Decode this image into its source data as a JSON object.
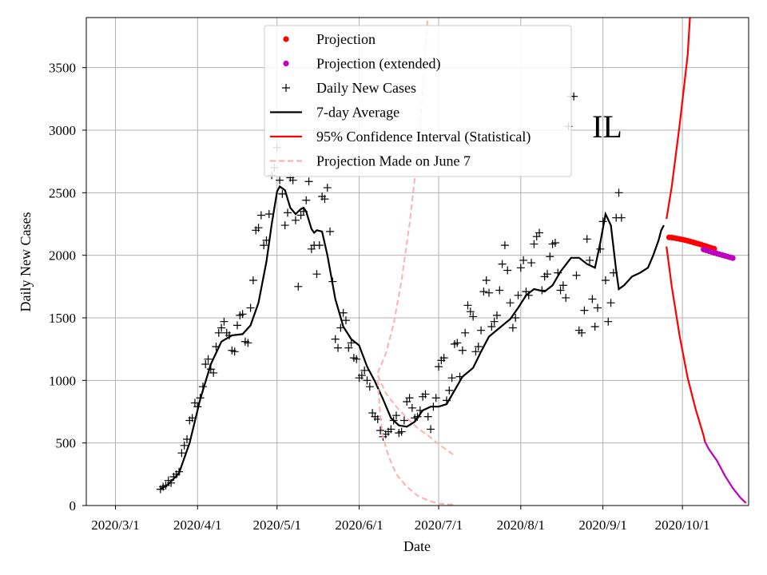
{
  "chart_data": {
    "type": "line",
    "state_label": "IL",
    "xlabel": "Date",
    "ylabel": "Daily New Cases",
    "xlim_days": [
      -11,
      239
    ],
    "ylim": [
      0,
      3900
    ],
    "x_ticks": [
      {
        "day": 0,
        "label": "2020/3/1"
      },
      {
        "day": 31,
        "label": "2020/4/1"
      },
      {
        "day": 61,
        "label": "2020/5/1"
      },
      {
        "day": 92,
        "label": "2020/6/1"
      },
      {
        "day": 122,
        "label": "2020/7/1"
      },
      {
        "day": 153,
        "label": "2020/8/1"
      },
      {
        "day": 184,
        "label": "2020/9/1"
      },
      {
        "day": 214,
        "label": "2020/10/1"
      }
    ],
    "y_ticks": [
      0,
      500,
      1000,
      1500,
      2000,
      2500,
      3000,
      3500
    ],
    "grid": true,
    "legend_position": "top-center",
    "legend": [
      {
        "label": "Projection",
        "color": "#ff0000",
        "style": "dot"
      },
      {
        "label": "Projection (extended)",
        "color": "#bf00bf",
        "style": "dot"
      },
      {
        "label": "Daily New Cases",
        "color": "#000000",
        "style": "plus"
      },
      {
        "label": "7-day Average",
        "color": "#000000",
        "style": "line"
      },
      {
        "label": "95% Confidence Interval (Statistical)",
        "color": "#ff0000",
        "style": "line"
      },
      {
        "label": "Projection Made on June 7",
        "color": "#ffb0b0",
        "style": "dashed"
      }
    ],
    "series": [
      {
        "name": "Daily New Cases",
        "color": "#000000",
        "x_start_day": 17,
        "values": [
          130,
          150,
          160,
          200,
          180,
          230,
          250,
          270,
          420,
          480,
          530,
          680,
          700,
          820,
          790,
          860,
          950,
          1130,
          1170,
          1090,
          1060,
          1270,
          1380,
          1420,
          1470,
          1380,
          1360,
          1240,
          1230,
          1440,
          1520,
          1530,
          1310,
          1300,
          1580,
          1800,
          2200,
          2220,
          2320,
          2080,
          2120,
          2330,
          2640,
          2700,
          2860,
          2600,
          2490,
          2240,
          2340,
          2620,
          2600,
          2280,
          1750,
          2320,
          2350,
          2440,
          2590,
          2050,
          2080,
          1850,
          2080,
          2470,
          2450,
          2540,
          2190,
          1790,
          1330,
          1260,
          1420,
          1540,
          1480,
          1260,
          1300,
          1180,
          1170,
          1020,
          1040,
          1080,
          1000,
          950,
          740,
          710,
          690,
          600,
          550,
          570,
          590,
          610,
          680,
          720,
          580,
          590,
          680,
          830,
          860,
          780,
          700,
          710,
          760,
          870,
          890,
          710,
          610,
          790,
          860,
          1110,
          1160,
          1180,
          840,
          920,
          1020,
          1290,
          1300,
          1030,
          1240,
          1380,
          1600,
          1550,
          1510,
          1230,
          1270,
          1400,
          1710,
          1800,
          1700,
          1430,
          1470,
          1520,
          1720,
          1930,
          2080,
          1880,
          1620,
          1420,
          1500,
          1680,
          1900,
          1960,
          1710,
          1680,
          1940,
          2090,
          2150,
          2180,
          1720,
          1830,
          1850,
          1990,
          2090,
          2100,
          1860,
          1720,
          1760,
          1660,
          3030,
          3270,
          3270,
          1840,
          1400,
          1380,
          1560,
          2130,
          1960,
          1650,
          1430,
          1580,
          2050,
          2270,
          1800,
          1470,
          1620,
          1860,
          2300,
          2500,
          2300
        ]
      },
      {
        "name": "7-day Average",
        "color": "#000000",
        "points": [
          [
            17,
            130
          ],
          [
            20,
            170
          ],
          [
            24,
            260
          ],
          [
            28,
            500
          ],
          [
            32,
            850
          ],
          [
            36,
            1130
          ],
          [
            40,
            1310
          ],
          [
            44,
            1360
          ],
          [
            48,
            1370
          ],
          [
            51,
            1440
          ],
          [
            54,
            1620
          ],
          [
            57,
            1950
          ],
          [
            59,
            2250
          ],
          [
            61,
            2510
          ],
          [
            62,
            2550
          ],
          [
            64,
            2520
          ],
          [
            66,
            2380
          ],
          [
            68,
            2330
          ],
          [
            70,
            2370
          ],
          [
            71,
            2380
          ],
          [
            72,
            2350
          ],
          [
            74,
            2210
          ],
          [
            75,
            2180
          ],
          [
            76,
            2200
          ],
          [
            78,
            2190
          ],
          [
            80,
            2000
          ],
          [
            83,
            1650
          ],
          [
            86,
            1430
          ],
          [
            89,
            1330
          ],
          [
            92,
            1280
          ],
          [
            95,
            1110
          ],
          [
            98,
            990
          ],
          [
            101,
            850
          ],
          [
            104,
            700
          ],
          [
            107,
            640
          ],
          [
            110,
            630
          ],
          [
            113,
            670
          ],
          [
            116,
            760
          ],
          [
            119,
            790
          ],
          [
            122,
            790
          ],
          [
            125,
            810
          ],
          [
            128,
            920
          ],
          [
            131,
            1030
          ],
          [
            135,
            1100
          ],
          [
            138,
            1230
          ],
          [
            141,
            1350
          ],
          [
            145,
            1420
          ],
          [
            149,
            1490
          ],
          [
            152,
            1580
          ],
          [
            155,
            1680
          ],
          [
            158,
            1730
          ],
          [
            162,
            1710
          ],
          [
            165,
            1760
          ],
          [
            168,
            1870
          ],
          [
            172,
            1980
          ],
          [
            175,
            1980
          ],
          [
            178,
            1930
          ],
          [
            181,
            1900
          ],
          [
            183,
            2100
          ],
          [
            185,
            2330
          ],
          [
            187,
            2240
          ],
          [
            189,
            1880
          ],
          [
            190,
            1730
          ],
          [
            192,
            1760
          ],
          [
            195,
            1830
          ],
          [
            198,
            1860
          ],
          [
            201,
            1900
          ],
          [
            203,
            2000
          ],
          [
            205,
            2120
          ],
          [
            206,
            2200
          ],
          [
            207,
            2240
          ]
        ]
      },
      {
        "name": "Projection",
        "color": "#ff0000",
        "x_start_day": 209,
        "values": [
          2143,
          2142,
          2138,
          2134,
          2130,
          2126,
          2121,
          2116,
          2110,
          2104,
          2098,
          2092,
          2086,
          2079,
          2072,
          2065,
          2058,
          2052
        ]
      },
      {
        "name": "Projection (extended)",
        "color": "#bf00bf",
        "x_start_day": 222,
        "values": [
          2047,
          2040,
          2033,
          2027,
          2020,
          2014,
          2008,
          2002,
          1996,
          1990,
          1984,
          1978
        ]
      },
      {
        "name": "95% Confidence Interval (Statistical) upper",
        "color": "#ff0000",
        "points": [
          [
            208,
            2290
          ],
          [
            210,
            2550
          ],
          [
            213,
            3050
          ],
          [
            216,
            3600
          ],
          [
            217,
            3950
          ]
        ]
      },
      {
        "name": "95% Confidence Interval (Statistical) lower",
        "color": "#ff0000",
        "points": [
          [
            208,
            2070
          ],
          [
            210,
            1750
          ],
          [
            213,
            1350
          ],
          [
            216,
            1020
          ],
          [
            219,
            770
          ],
          [
            222,
            560
          ],
          [
            222.5,
            510
          ]
        ]
      },
      {
        "name": "95% Confidence Interval extended lower",
        "color": "#bf00bf",
        "points": [
          [
            222.5,
            510
          ],
          [
            224,
            450
          ],
          [
            227,
            360
          ],
          [
            230,
            240
          ],
          [
            233,
            140
          ],
          [
            236,
            60
          ],
          [
            238,
            20
          ]
        ]
      },
      {
        "name": "Projection Made on June 7 upper",
        "color": "#ffb0b0",
        "points": [
          [
            99,
            1040
          ],
          [
            102,
            900
          ],
          [
            106,
            790
          ],
          [
            110,
            700
          ],
          [
            114,
            620
          ],
          [
            118,
            560
          ],
          [
            122,
            490
          ],
          [
            126,
            430
          ],
          [
            128,
            400
          ]
        ]
      },
      {
        "name": "Projection Made on June 7 lower",
        "color": "#ffb0b0",
        "points": [
          [
            99,
            1000
          ],
          [
            100,
            700
          ],
          [
            101,
            550
          ],
          [
            103,
            400
          ],
          [
            106,
            250
          ],
          [
            110,
            150
          ],
          [
            114,
            80
          ],
          [
            118,
            40
          ],
          [
            122,
            15
          ],
          [
            128,
            5
          ]
        ]
      },
      {
        "name": "Projection Made on June 7 high",
        "color": "#ffb0b0",
        "points": [
          [
            99,
            1060
          ],
          [
            102,
            1210
          ],
          [
            105,
            1450
          ],
          [
            108,
            1800
          ],
          [
            111,
            2250
          ],
          [
            114,
            2800
          ],
          [
            116,
            3300
          ],
          [
            117,
            3650
          ],
          [
            118,
            3950
          ]
        ]
      }
    ]
  }
}
